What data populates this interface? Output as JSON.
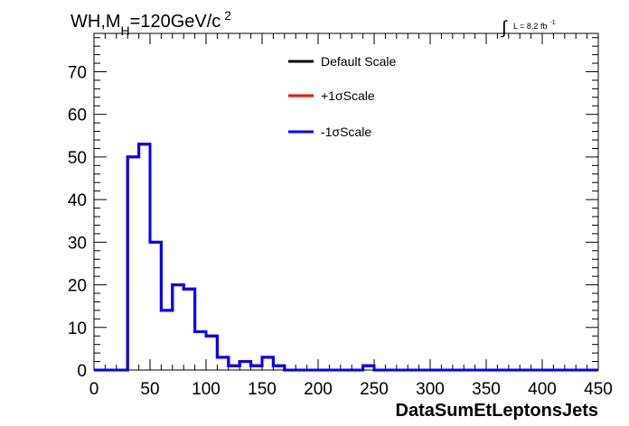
{
  "title": {
    "prefix": "WH,M",
    "subscript": "H",
    "suffix": "=120GeV/c",
    "superscript": "2"
  },
  "lumi": {
    "integral": "∫",
    "text": "L = 8.2 fb",
    "superscript": "-1"
  },
  "chart_data": {
    "type": "line",
    "xlabel": "DataSumEtLeptonsJets",
    "ylabel": "",
    "xlim": [
      0,
      450
    ],
    "ylim": [
      0,
      79
    ],
    "xticks": [
      0,
      50,
      100,
      150,
      200,
      250,
      300,
      350,
      400,
      450
    ],
    "yticks": [
      0,
      10,
      20,
      30,
      40,
      50,
      60,
      70
    ],
    "bin_edges": [
      0,
      10,
      20,
      30,
      40,
      50,
      60,
      70,
      80,
      90,
      100,
      110,
      120,
      130,
      140,
      150,
      160,
      170,
      180,
      190,
      200,
      210,
      220,
      230,
      240,
      250,
      260,
      270,
      280,
      290,
      300,
      310,
      320,
      330,
      340,
      350,
      360,
      370,
      380,
      390,
      400,
      410,
      420,
      430,
      440,
      450
    ],
    "series": [
      {
        "name": "Default Scale",
        "color": "#000000",
        "values": [
          0,
          0,
          0,
          50,
          53,
          30,
          14,
          20,
          19,
          9,
          8,
          3,
          1,
          2,
          1,
          3,
          1,
          0,
          0,
          0,
          0,
          0,
          0,
          0,
          1,
          0,
          0,
          0,
          0,
          0,
          0,
          0,
          0,
          0,
          0,
          0,
          0,
          0,
          0,
          0,
          0,
          0,
          0,
          0,
          0
        ]
      },
      {
        "name": "+1σScale",
        "color": "#ff0000",
        "values": [
          0,
          0,
          0,
          50,
          53,
          30,
          14,
          20,
          19,
          9,
          8,
          3,
          1,
          2,
          1,
          3,
          1,
          0,
          0,
          0,
          0,
          0,
          0,
          0,
          1,
          0,
          0,
          0,
          0,
          0,
          0,
          0,
          0,
          0,
          0,
          0,
          0,
          0,
          0,
          0,
          0,
          0,
          0,
          0,
          0
        ]
      },
      {
        "name": "-1σScale",
        "color": "#0000ff",
        "values": [
          0,
          0,
          0,
          50,
          53,
          30,
          14,
          20,
          19,
          9,
          8,
          3,
          1,
          2,
          1,
          3,
          1,
          0,
          0,
          0,
          0,
          0,
          0,
          0,
          1,
          0,
          0,
          0,
          0,
          0,
          0,
          0,
          0,
          0,
          0,
          0,
          0,
          0,
          0,
          0,
          0,
          0,
          0,
          0,
          0
        ]
      }
    ],
    "legend_position": "top-center",
    "grid": false
  }
}
